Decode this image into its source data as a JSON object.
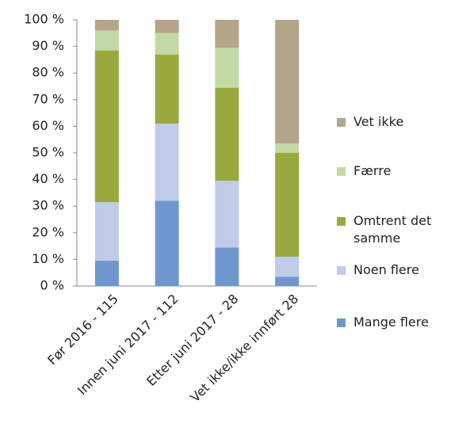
{
  "chart_data": {
    "type": "stacked_bar",
    "categories": [
      "Før 2016 - 115",
      "Innen juni 2017 - 112",
      "Etter juni 2017 - 28",
      "Vet ikke/ikke innført 28"
    ],
    "series": [
      {
        "name": "Mange flere",
        "color": "#6f97cd",
        "values": [
          9.5,
          32,
          14.5,
          3.5
        ]
      },
      {
        "name": "Noen flere",
        "color": "#c0cbe8",
        "values": [
          22,
          29,
          25,
          7.5
        ]
      },
      {
        "name": "Omtrent det samme",
        "color": "#99a93e",
        "values": [
          57,
          26,
          35,
          39
        ]
      },
      {
        "name": "Færre",
        "color": "#c3d9a5",
        "values": [
          7.5,
          8,
          15,
          3.5
        ]
      },
      {
        "name": "Vet ikke",
        "color": "#b5a58a",
        "values": [
          4,
          5,
          10.5,
          46.5
        ]
      }
    ],
    "ylim": [
      0,
      100
    ],
    "yticks": [
      {
        "value": 0,
        "label": "0 %"
      },
      {
        "value": 10,
        "label": "10 %"
      },
      {
        "value": 20,
        "label": "20 %"
      },
      {
        "value": 30,
        "label": "30 %"
      },
      {
        "value": 40,
        "label": "40 %"
      },
      {
        "value": 50,
        "label": "50 %"
      },
      {
        "value": 60,
        "label": "60 %"
      },
      {
        "value": 70,
        "label": "70 %"
      },
      {
        "value": 80,
        "label": "80 %"
      },
      {
        "value": 90,
        "label": "90 %"
      },
      {
        "value": 100,
        "label": "100 %"
      }
    ],
    "legend": "right"
  }
}
